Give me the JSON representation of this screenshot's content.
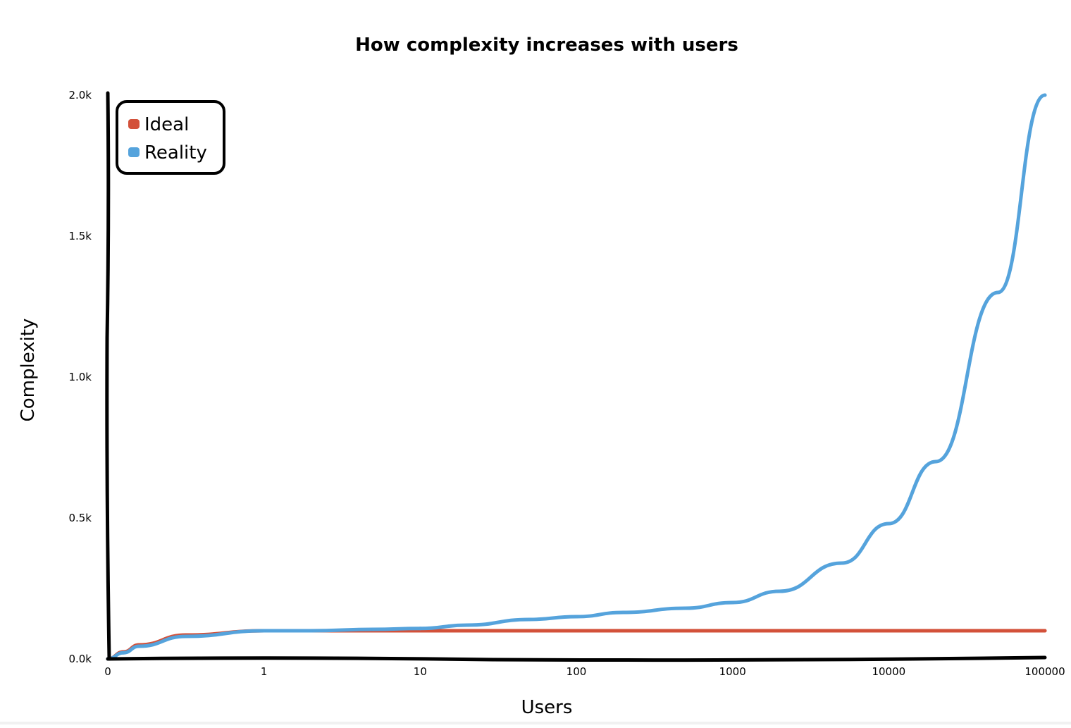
{
  "chart_data": {
    "type": "line",
    "title": "How complexity increases with users",
    "xlabel": "Users",
    "ylabel": "Complexity",
    "x_tick_labels": [
      "0",
      "1",
      "10",
      "100",
      "1000",
      "10000",
      "100000"
    ],
    "y_tick_labels": [
      "0.0k",
      "0.5k",
      "1.0k",
      "1.5k",
      "2.0k"
    ],
    "ylim": [
      0,
      2000
    ],
    "grid": false,
    "legend_position": "top-left",
    "x": [
      0,
      0.1,
      0.2,
      0.5,
      1,
      2,
      5,
      10,
      20,
      50,
      100,
      200,
      500,
      1000,
      2000,
      5000,
      10000,
      20000,
      50000,
      100000
    ],
    "series": [
      {
        "name": "Ideal",
        "color": "#d3513a",
        "values": [
          0,
          25,
          50,
          85,
          100,
          100,
          100,
          100,
          100,
          100,
          100,
          100,
          100,
          100,
          100,
          100,
          100,
          100,
          100,
          100
        ]
      },
      {
        "name": "Reality",
        "color": "#55a3dc",
        "values": [
          0,
          22,
          45,
          80,
          100,
          100,
          105,
          108,
          120,
          140,
          150,
          165,
          180,
          200,
          240,
          340,
          480,
          700,
          1300,
          2000
        ]
      }
    ]
  }
}
